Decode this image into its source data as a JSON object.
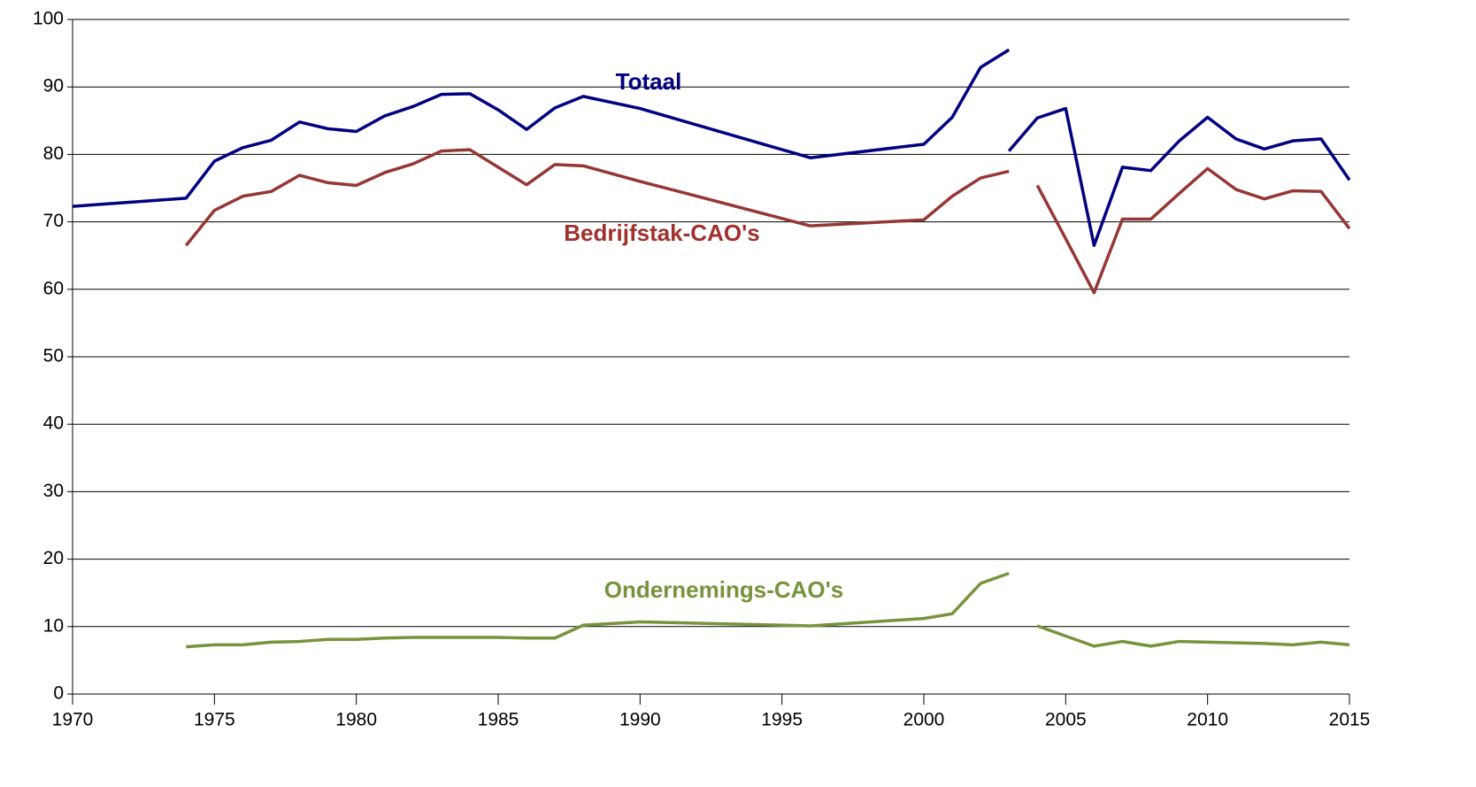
{
  "chart_data": {
    "type": "line",
    "x": [
      1970,
      1974,
      1975,
      1976,
      1977,
      1978,
      1979,
      1980,
      1981,
      1982,
      1983,
      1984,
      1985,
      1986,
      1987,
      1988,
      1990,
      1996,
      2000,
      2001,
      2002,
      2003,
      null,
      2003,
      2004,
      2005,
      2006,
      2007,
      2008,
      2009,
      2010,
      2011,
      2012,
      2013,
      2014,
      2015
    ],
    "series": [
      {
        "name": "Totaal",
        "color": "#000080",
        "values": [
          72.3,
          73.5,
          79.0,
          81.0,
          82.1,
          84.8,
          83.8,
          83.4,
          85.7,
          87.1,
          88.9,
          89.0,
          86.6,
          83.7,
          86.9,
          88.6,
          86.8,
          79.5,
          81.5,
          85.5,
          92.9,
          95.5,
          null,
          80.5,
          85.4,
          86.8,
          66.5,
          78.1,
          77.6,
          82.0,
          85.5,
          82.3,
          80.8,
          82.0,
          82.3,
          76.2
        ]
      },
      {
        "name": "Bedrijfstak-CAO's",
        "color": "#953735",
        "values": [
          null,
          66.5,
          71.7,
          73.8,
          74.5,
          76.9,
          75.8,
          75.4,
          77.3,
          78.6,
          80.5,
          80.7,
          78.1,
          75.5,
          78.5,
          78.3,
          76.0,
          69.4,
          70.3,
          73.8,
          76.5,
          77.5,
          null,
          null,
          75.4,
          67.5,
          59.5,
          70.4,
          70.4,
          74.2,
          77.9,
          74.8,
          73.4,
          74.6,
          74.5,
          69.0
        ]
      },
      {
        "name": "Ondernemings-CAO's",
        "color": "#77933c",
        "values": [
          null,
          7.0,
          7.3,
          7.3,
          7.7,
          7.8,
          8.1,
          8.1,
          8.3,
          8.4,
          8.4,
          8.4,
          8.4,
          8.3,
          8.3,
          10.2,
          10.7,
          10.1,
          11.2,
          11.9,
          16.4,
          17.9,
          null,
          null,
          10.1,
          8.6,
          7.1,
          7.8,
          7.1,
          7.8,
          7.7,
          7.6,
          7.5,
          7.3,
          7.7,
          7.3
        ]
      }
    ],
    "label_colors": [
      "#000080",
      "#a0302d",
      "#77933c"
    ],
    "xlim": [
      1970,
      2015
    ],
    "xticks": [
      1970,
      1975,
      1980,
      1985,
      1990,
      1995,
      2000,
      2005,
      2010,
      2015
    ],
    "ylim": [
      0,
      100
    ],
    "yticks": [
      0,
      10,
      20,
      30,
      40,
      50,
      60,
      70,
      80,
      90,
      100
    ],
    "grid": true
  }
}
